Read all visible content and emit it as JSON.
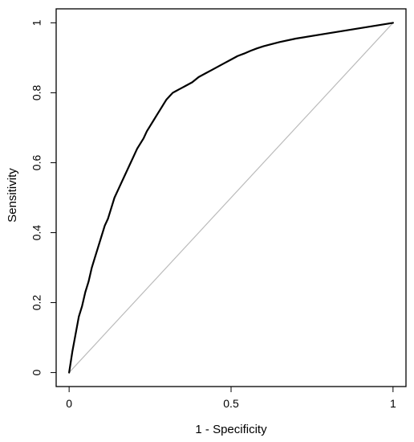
{
  "chart_data": {
    "type": "line",
    "title": "",
    "xlabel": "1 - Specificity",
    "ylabel": "Sensitivity",
    "xlim": [
      -0.04,
      1.04
    ],
    "ylim": [
      -0.04,
      1.04
    ],
    "grid": false,
    "x_ticks": [
      {
        "value": 0,
        "label": "0"
      },
      {
        "value": 0.5,
        "label": "0.5"
      },
      {
        "value": 1,
        "label": "1"
      }
    ],
    "y_ticks": [
      {
        "value": 0,
        "label": "0"
      },
      {
        "value": 0.2,
        "label": "0.2"
      },
      {
        "value": 0.4,
        "label": "0.4"
      },
      {
        "value": 0.6,
        "label": "0.6"
      },
      {
        "value": 0.8,
        "label": "0.8"
      },
      {
        "value": 1,
        "label": "1"
      }
    ],
    "series": [
      {
        "color": "#000000",
        "x": [
          0,
          0.01,
          0.02,
          0.03,
          0.04,
          0.05,
          0.06,
          0.07,
          0.08,
          0.09,
          0.1,
          0.11,
          0.12,
          0.13,
          0.14,
          0.15,
          0.16,
          0.17,
          0.18,
          0.19,
          0.2,
          0.21,
          0.22,
          0.23,
          0.24,
          0.25,
          0.26,
          0.27,
          0.28,
          0.29,
          0.3,
          0.31,
          0.32,
          0.33,
          0.34,
          0.35,
          0.36,
          0.38,
          0.4,
          0.42,
          0.44,
          0.46,
          0.48,
          0.5,
          0.52,
          0.54,
          0.56,
          0.58,
          0.6,
          0.62,
          0.65,
          0.7,
          0.8,
          0.9,
          1
        ],
        "y": [
          0,
          0.06,
          0.11,
          0.16,
          0.19,
          0.23,
          0.26,
          0.3,
          0.33,
          0.36,
          0.39,
          0.42,
          0.44,
          0.47,
          0.5,
          0.52,
          0.54,
          0.56,
          0.58,
          0.6,
          0.62,
          0.64,
          0.655,
          0.67,
          0.69,
          0.705,
          0.72,
          0.735,
          0.75,
          0.765,
          0.78,
          0.79,
          0.8,
          0.805,
          0.81,
          0.815,
          0.82,
          0.83,
          0.845,
          0.855,
          0.865,
          0.875,
          0.885,
          0.895,
          0.905,
          0.912,
          0.92,
          0.927,
          0.933,
          0.938,
          0.945,
          0.955,
          0.97,
          0.985,
          1.0
        ]
      }
    ],
    "reference_line": {
      "color": "#bbbbbb",
      "x": [
        0,
        1
      ],
      "y": [
        0,
        1
      ]
    }
  }
}
